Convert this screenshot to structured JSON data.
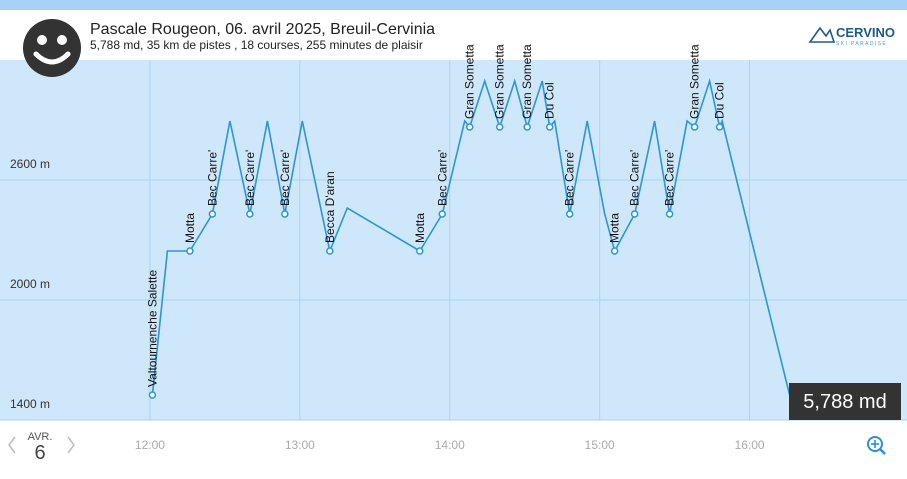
{
  "header": {
    "title": "Pascale Rougeon, 06. avril 2025, Breuil-Cervinia",
    "subtitle": "5,788 md, 35 km de pistes , 18 courses, 255 minutes de plaisir",
    "logo": "CERVINO",
    "logo_sub": "SKI PARADISE"
  },
  "badge": "5,788 md",
  "date": {
    "month": "AVR.",
    "day": "6"
  },
  "chart_data": {
    "type": "line",
    "x": [
      "12:01",
      "12:07",
      "12:16",
      "12:25",
      "12:32",
      "12:40",
      "12:47",
      "12:54",
      "13:01",
      "13:12",
      "13:19",
      "13:48",
      "13:57",
      "14:06",
      "14:08",
      "14:14",
      "14:20",
      "14:26",
      "14:31",
      "14:37",
      "14:40",
      "14:42",
      "14:48",
      "14:55",
      "15:02",
      "15:06",
      "15:14",
      "15:22",
      "15:28",
      "15:35",
      "15:38",
      "15:44",
      "15:48",
      "15:49",
      "16:16"
    ],
    "values": [
      1525,
      2245,
      2245,
      2430,
      2895,
      2430,
      2895,
      2430,
      2895,
      2245,
      2460,
      2245,
      2430,
      2895,
      2865,
      3095,
      2865,
      3095,
      2865,
      3095,
      2865,
      2895,
      2430,
      2895,
      2430,
      2245,
      2430,
      2895,
      2430,
      2895,
      2865,
      3095,
      2865,
      2895,
      1525
    ],
    "labels": [
      "Valtournenche Salette",
      null,
      "Motta",
      "Bec Carre'",
      null,
      "Bec Carre'",
      null,
      "Bec Carre'",
      null,
      "Becca D'aran",
      null,
      "Motta",
      "Bec Carre'",
      null,
      "Gran Sometta",
      null,
      "Gran Sometta",
      null,
      "Gran Sometta",
      null,
      "Du Col",
      null,
      "Bec Carre'",
      null,
      null,
      "Motta",
      "Bec Carre'",
      null,
      "Bec Carre'",
      null,
      "Gran Sometta",
      null,
      "Du Col",
      null,
      null
    ],
    "color": "#2b96d6",
    "xlim": [
      "11:00",
      "17:03"
    ],
    "xticks": [
      "12:00",
      "13:00",
      "14:00",
      "15:00",
      "16:00"
    ],
    "ylim": [
      1400,
      3200
    ],
    "yticks": [
      {
        "value": 1400,
        "label": "1400 m"
      },
      {
        "value": 2000,
        "label": "2000 m"
      },
      {
        "value": 2600,
        "label": "2600 m"
      }
    ],
    "grid": true
  }
}
